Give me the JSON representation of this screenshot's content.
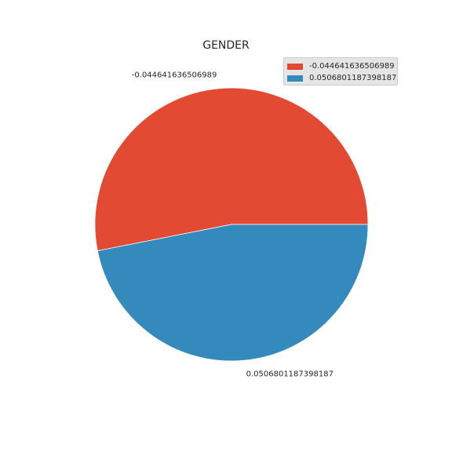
{
  "chart_data": {
    "type": "pie",
    "title": "GENDER",
    "labels": [
      "-0.044641636506989",
      "0.0506801187398187"
    ],
    "values": [
      53.1,
      46.9
    ],
    "colors": [
      "#e24a33",
      "#348abd"
    ],
    "startangle": 0,
    "direction": "counterclockwise",
    "legend": "top-right"
  }
}
